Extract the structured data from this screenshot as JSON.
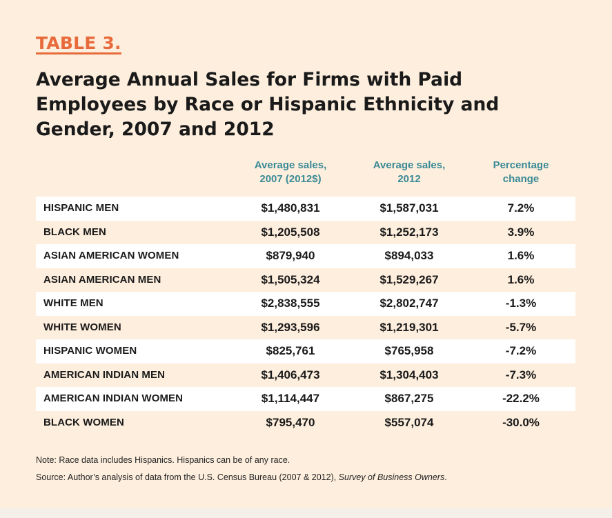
{
  "table_label": "TABLE 3.",
  "title": "Average Annual Sales for Firms with Paid Employees by Race or Hispanic Ethnicity and Gender, 2007 and 2012",
  "columns": {
    "col1_line1": "Average sales,",
    "col1_line2": "2007 (2012$)",
    "col2_line1": "Average sales,",
    "col2_line2": "2012",
    "col3_line1": "Percentage",
    "col3_line2": "change"
  },
  "rows": [
    {
      "group": "HISPANIC MEN",
      "sales_2007": "$1,480,831",
      "sales_2012": "$1,587,031",
      "change": "7.2%"
    },
    {
      "group": "BLACK MEN",
      "sales_2007": "$1,205,508",
      "sales_2012": "$1,252,173",
      "change": "3.9%"
    },
    {
      "group": "ASIAN AMERICAN WOMEN",
      "sales_2007": "$879,940",
      "sales_2012": "$894,033",
      "change": "1.6%"
    },
    {
      "group": "ASIAN AMERICAN MEN",
      "sales_2007": "$1,505,324",
      "sales_2012": "$1,529,267",
      "change": "1.6%"
    },
    {
      "group": "WHITE MEN",
      "sales_2007": "$2,838,555",
      "sales_2012": "$2,802,747",
      "change": "-1.3%"
    },
    {
      "group": "WHITE WOMEN",
      "sales_2007": "$1,293,596",
      "sales_2012": "$1,219,301",
      "change": "-5.7%"
    },
    {
      "group": "HISPANIC WOMEN",
      "sales_2007": "$825,761",
      "sales_2012": "$765,958",
      "change": "-7.2%"
    },
    {
      "group": "AMERICAN INDIAN MEN",
      "sales_2007": "$1,406,473",
      "sales_2012": "$1,304,403",
      "change": "-7.3%"
    },
    {
      "group": "AMERICAN INDIAN WOMEN",
      "sales_2007": "$1,114,447",
      "sales_2012": "$867,275",
      "change": "-22.2%"
    },
    {
      "group": "BLACK WOMEN",
      "sales_2007": "$795,470",
      "sales_2012": "$557,074",
      "change": "-30.0%"
    }
  ],
  "note": "Note: Race data includes Hispanics. Hispanics can be of any race.",
  "source_prefix": "Source: Author’s analysis of data from the U.S. Census Bureau (2007 & 2012), ",
  "source_italic": "Survey of Business Owners",
  "source_suffix": ".",
  "colors": {
    "background": "#fdeedd",
    "accent_label": "#e86a3b",
    "column_header": "#3a8a96",
    "row_stripe": "#ffffff",
    "text": "#1a1a1a"
  }
}
